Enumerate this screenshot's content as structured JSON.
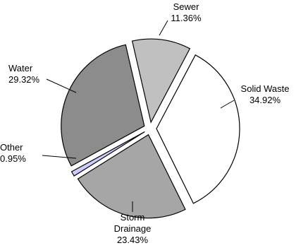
{
  "chart_data": {
    "type": "pie",
    "title": "",
    "slices": [
      {
        "label": "Sewer",
        "value_label": "11.36%",
        "value": 11.36,
        "color": "#c0c0c0"
      },
      {
        "label": "Solid Waste",
        "value_label": "34.92%",
        "value": 34.92,
        "color": "#ffffff"
      },
      {
        "label": "Storm Drainage",
        "value_label": "23.43%",
        "value": 23.43,
        "color": "#a6a6a6"
      },
      {
        "label": "Other",
        "value_label": "0.95%",
        "value": 0.95,
        "color": "#ccccff"
      },
      {
        "label": "Water",
        "value_label": "29.32%",
        "value": 29.32,
        "color": "#8c8c8c"
      }
    ],
    "start_angle_deg": -13,
    "direction": "clockwise",
    "exploded": true,
    "legend": "none",
    "data_labels": "outside-with-leaders"
  }
}
